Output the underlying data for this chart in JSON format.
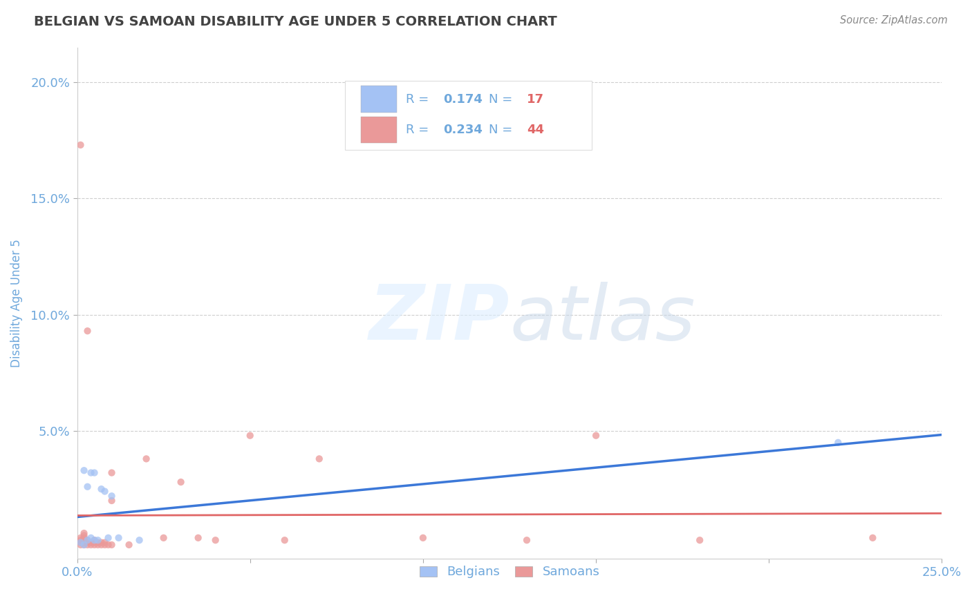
{
  "title": "BELGIAN VS SAMOAN DISABILITY AGE UNDER 5 CORRELATION CHART",
  "source": "Source: ZipAtlas.com",
  "ylabel": "Disability Age Under 5",
  "xlim": [
    0.0,
    0.25
  ],
  "ylim": [
    -0.005,
    0.215
  ],
  "belgian_R": "0.174",
  "belgian_N": "17",
  "samoan_R": "0.234",
  "samoan_N": "44",
  "belgian_color": "#a4c2f4",
  "samoan_color": "#ea9999",
  "belgian_line_color": "#3c78d8",
  "samoan_line_color": "#e06666",
  "axis_color": "#6fa8dc",
  "grid_color": "#c9c9c9",
  "title_color": "#434343",
  "legend_text_color": "#6fa8dc",
  "legend_value_color": "#6fa8dc",
  "legend_N_color": "#e06666",
  "belgians_x": [
    0.001,
    0.002,
    0.002,
    0.003,
    0.003,
    0.004,
    0.004,
    0.005,
    0.005,
    0.006,
    0.007,
    0.008,
    0.009,
    0.01,
    0.012,
    0.018,
    0.22
  ],
  "belgians_y": [
    0.002,
    0.001,
    0.033,
    0.026,
    0.003,
    0.004,
    0.032,
    0.003,
    0.032,
    0.003,
    0.025,
    0.024,
    0.004,
    0.022,
    0.004,
    0.003,
    0.045
  ],
  "samoans_x": [
    0.001,
    0.001,
    0.001,
    0.001,
    0.001,
    0.002,
    0.002,
    0.002,
    0.002,
    0.002,
    0.002,
    0.003,
    0.003,
    0.003,
    0.003,
    0.004,
    0.004,
    0.005,
    0.005,
    0.005,
    0.006,
    0.006,
    0.007,
    0.007,
    0.008,
    0.008,
    0.009,
    0.01,
    0.01,
    0.01,
    0.015,
    0.02,
    0.025,
    0.03,
    0.035,
    0.04,
    0.05,
    0.06,
    0.07,
    0.1,
    0.13,
    0.15,
    0.18,
    0.23
  ],
  "samoans_y": [
    0.001,
    0.002,
    0.003,
    0.004,
    0.173,
    0.001,
    0.002,
    0.003,
    0.004,
    0.005,
    0.006,
    0.001,
    0.002,
    0.003,
    0.093,
    0.001,
    0.002,
    0.001,
    0.002,
    0.003,
    0.001,
    0.002,
    0.001,
    0.002,
    0.001,
    0.002,
    0.001,
    0.001,
    0.02,
    0.032,
    0.001,
    0.038,
    0.004,
    0.028,
    0.004,
    0.003,
    0.048,
    0.003,
    0.038,
    0.004,
    0.003,
    0.048,
    0.003,
    0.004
  ]
}
